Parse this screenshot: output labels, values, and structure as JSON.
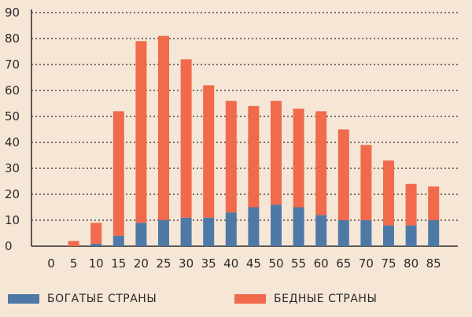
{
  "chart_data": {
    "type": "bar",
    "stacked": true,
    "categories": [
      "0",
      "5",
      "10",
      "15",
      "20",
      "25",
      "30",
      "35",
      "40",
      "45",
      "50",
      "55",
      "60",
      "65",
      "70",
      "75",
      "80",
      "85"
    ],
    "series": [
      {
        "name": "БОГАТЫЕ СТРАНЫ",
        "color": "#4e79a7",
        "values": [
          0,
          0,
          1,
          4,
          9,
          10,
          11,
          11,
          13,
          15,
          16,
          15,
          12,
          10,
          10,
          8,
          8,
          10
        ]
      },
      {
        "name": "БЕДНЫЕ СТРАНЫ",
        "color": "#f06a4b",
        "values": [
          0,
          2,
          8,
          48,
          70,
          71,
          61,
          51,
          43,
          39,
          40,
          38,
          40,
          35,
          29,
          25,
          16,
          13
        ]
      }
    ],
    "yticks": [
      0,
      10,
      20,
      30,
      40,
      50,
      60,
      70,
      80,
      90
    ],
    "ylim": [
      0,
      90
    ],
    "grid": true,
    "legend_position": "bottom",
    "xlabel": "",
    "ylabel": "",
    "title": ""
  }
}
